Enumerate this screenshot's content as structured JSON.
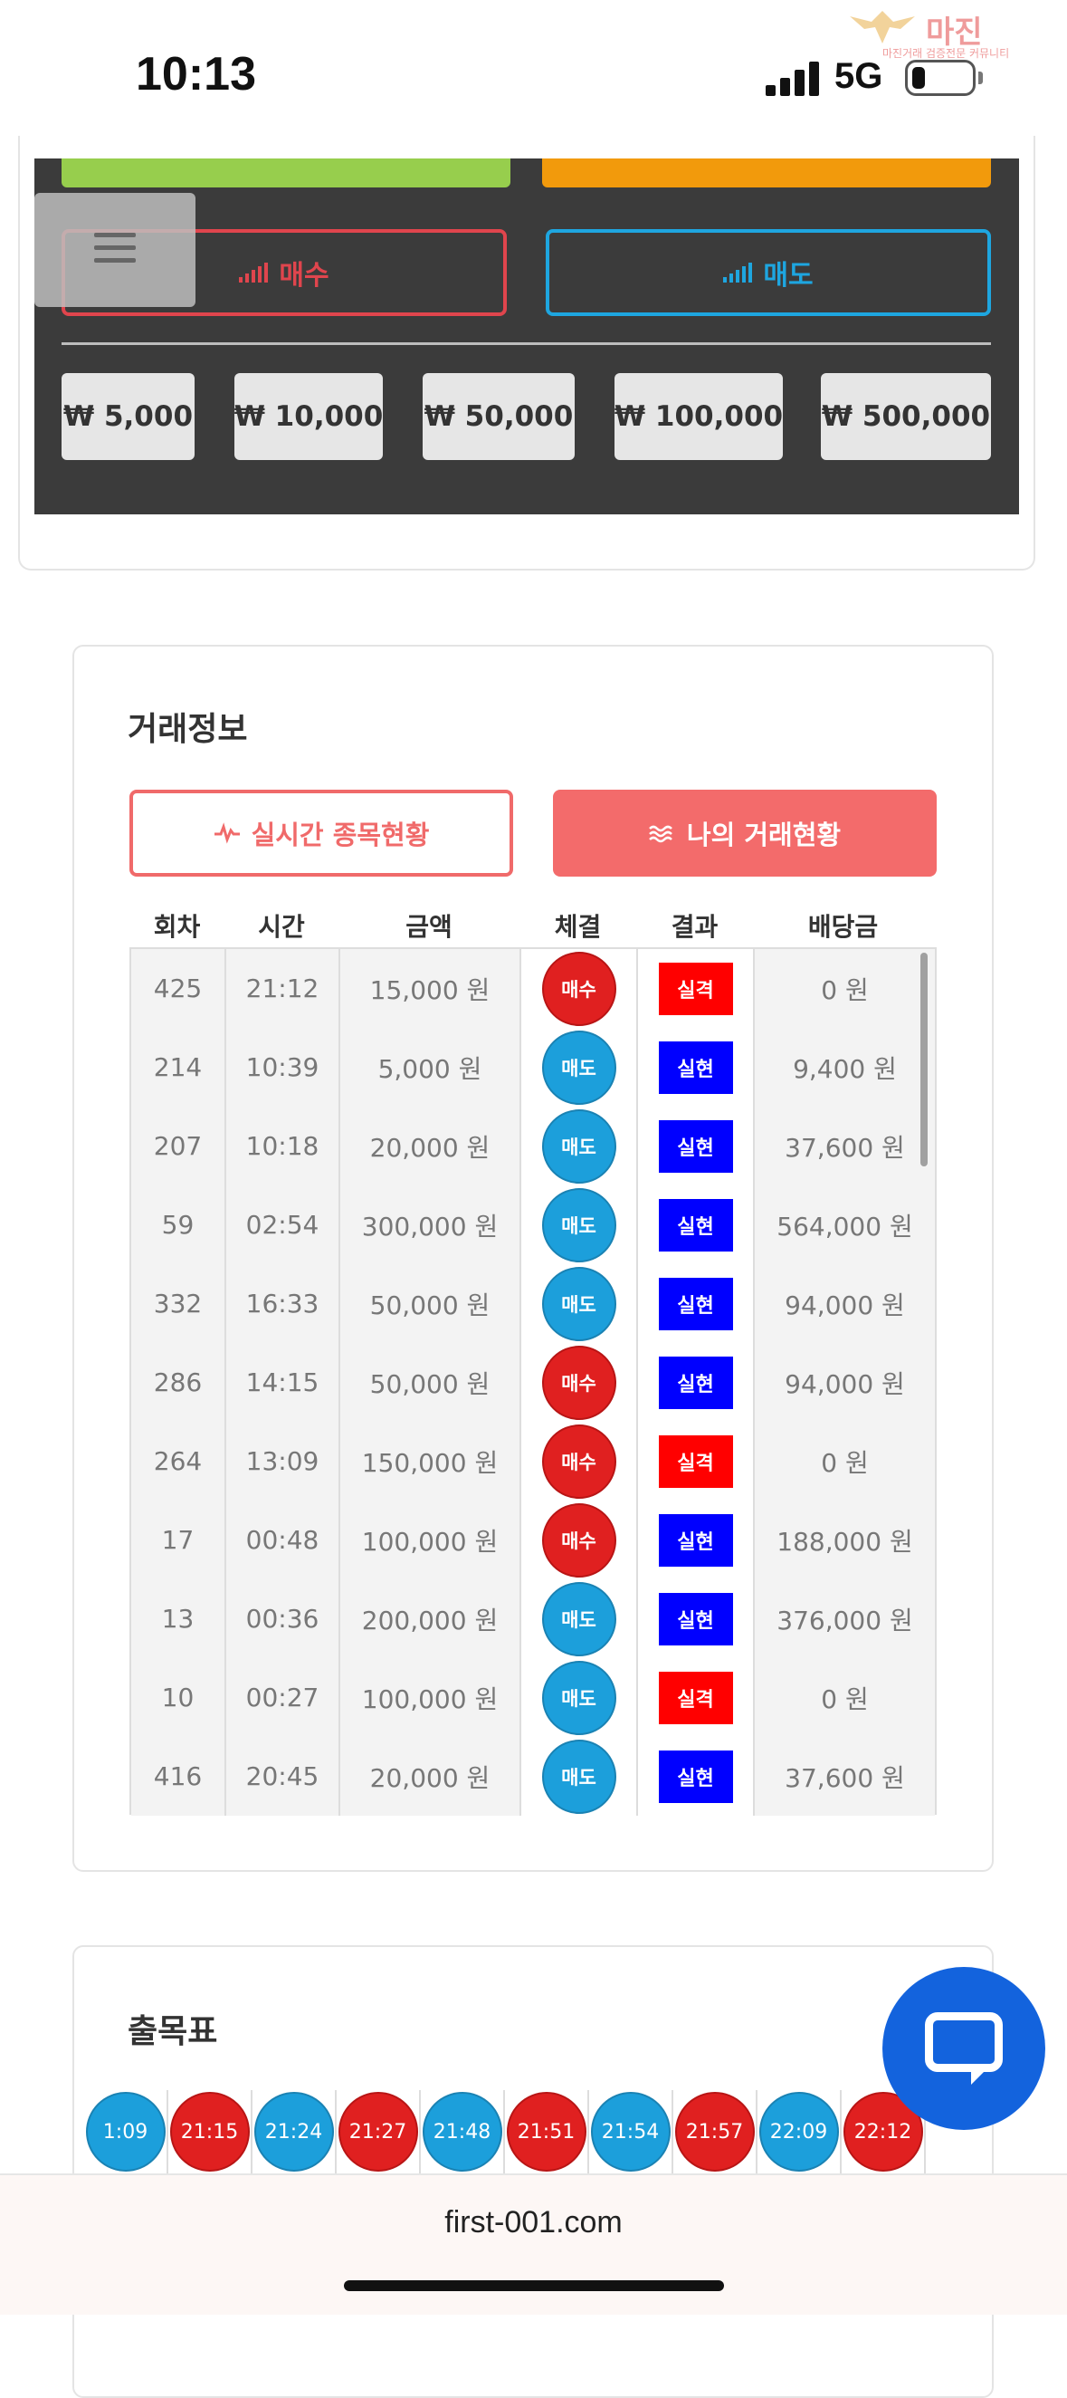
{
  "status_bar": {
    "time": "10:13",
    "network": "5G"
  },
  "watermark": {
    "title": "마진",
    "subtitle": "마진거래 검증전문 커뮤니티"
  },
  "trade_panel": {
    "buy_label": "매수",
    "sell_label": "매도",
    "amounts": [
      "₩ 5,000",
      "₩ 10,000",
      "₩ 50,000",
      "₩ 100,000",
      "₩ 500,000"
    ],
    "colors": {
      "buy": "#e0454d",
      "sell": "#1ea6e0",
      "green": "#97ce4d",
      "orange": "#f29a0c"
    }
  },
  "trade_info": {
    "title": "거래정보",
    "tab_live": "실시간 종목현황",
    "tab_mine": "나의 거래현황",
    "columns": [
      "회차",
      "시간",
      "금액",
      "체결",
      "결과",
      "배당금"
    ],
    "rows": [
      {
        "round": "425",
        "time": "21:12",
        "amount": "15,000 원",
        "side": "매수",
        "side_type": "buy",
        "result": "실격",
        "result_type": "lose",
        "payout": "0 원"
      },
      {
        "round": "214",
        "time": "10:39",
        "amount": "5,000 원",
        "side": "매도",
        "side_type": "sell",
        "result": "실현",
        "result_type": "win",
        "payout": "9,400 원"
      },
      {
        "round": "207",
        "time": "10:18",
        "amount": "20,000 원",
        "side": "매도",
        "side_type": "sell",
        "result": "실현",
        "result_type": "win",
        "payout": "37,600 원"
      },
      {
        "round": "59",
        "time": "02:54",
        "amount": "300,000 원",
        "side": "매도",
        "side_type": "sell",
        "result": "실현",
        "result_type": "win",
        "payout": "564,000 원"
      },
      {
        "round": "332",
        "time": "16:33",
        "amount": "50,000 원",
        "side": "매도",
        "side_type": "sell",
        "result": "실현",
        "result_type": "win",
        "payout": "94,000 원"
      },
      {
        "round": "286",
        "time": "14:15",
        "amount": "50,000 원",
        "side": "매수",
        "side_type": "buy",
        "result": "실현",
        "result_type": "win",
        "payout": "94,000 원"
      },
      {
        "round": "264",
        "time": "13:09",
        "amount": "150,000 원",
        "side": "매수",
        "side_type": "buy",
        "result": "실격",
        "result_type": "lose",
        "payout": "0 원"
      },
      {
        "round": "17",
        "time": "00:48",
        "amount": "100,000 원",
        "side": "매수",
        "side_type": "buy",
        "result": "실현",
        "result_type": "win",
        "payout": "188,000 원"
      },
      {
        "round": "13",
        "time": "00:36",
        "amount": "200,000 원",
        "side": "매도",
        "side_type": "sell",
        "result": "실현",
        "result_type": "win",
        "payout": "376,000 원"
      },
      {
        "round": "10",
        "time": "00:27",
        "amount": "100,000 원",
        "side": "매도",
        "side_type": "sell",
        "result": "실격",
        "result_type": "lose",
        "payout": "0 원"
      },
      {
        "round": "416",
        "time": "20:45",
        "amount": "20,000 원",
        "side": "매도",
        "side_type": "sell",
        "result": "실현",
        "result_type": "win",
        "payout": "37,600 원"
      }
    ]
  },
  "results_board": {
    "title": "출목표",
    "items": [
      {
        "time": "1:09",
        "color": "blue"
      },
      {
        "time": "21:15",
        "color": "red"
      },
      {
        "time": "21:24",
        "color": "blue"
      },
      {
        "time": "21:27",
        "color": "red"
      },
      {
        "time": "21:48",
        "color": "blue"
      },
      {
        "time": "21:51",
        "color": "red"
      },
      {
        "time": "21:54",
        "color": "blue"
      },
      {
        "time": "21:57",
        "color": "red"
      },
      {
        "time": "22:09",
        "color": "blue"
      },
      {
        "time": "22:12",
        "color": "red"
      }
    ]
  },
  "browser": {
    "url": "first-001.com"
  },
  "chat": {
    "icon": "chat-bubble-icon"
  }
}
